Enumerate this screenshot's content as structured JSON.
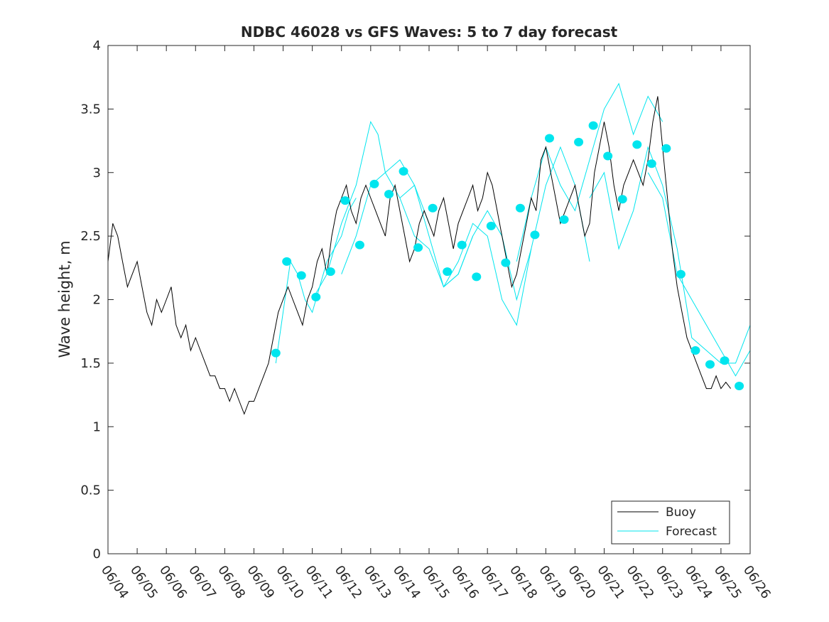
{
  "chart_data": {
    "type": "line",
    "title": "NDBC 46028 vs GFS Waves: 5 to 7 day forecast",
    "xlabel": "",
    "ylabel": "Wave height, m",
    "x_tick_labels": [
      "06/04",
      "06/05",
      "06/06",
      "06/07",
      "06/08",
      "06/09",
      "06/10",
      "06/11",
      "06/12",
      "06/13",
      "06/14",
      "06/15",
      "06/16",
      "06/17",
      "06/18",
      "06/19",
      "06/20",
      "06/21",
      "06/22",
      "06/23",
      "06/24",
      "06/25",
      "06/26"
    ],
    "xlim": [
      "06/04 00:00",
      "06/26 00:00"
    ],
    "ylim": [
      0,
      4
    ],
    "y_ticks": [
      "0",
      "0.5",
      "1",
      "1.5",
      "2",
      "2.5",
      "3",
      "3.5",
      "4"
    ],
    "grid": false,
    "legend_position": "bottom-right",
    "colors": {
      "buoy": "#000000",
      "forecast": "#00e5ee",
      "marker": "#00e5ee"
    },
    "series": [
      {
        "name": "Buoy",
        "kind": "line",
        "x": [
          "06/04 00:00",
          "06/04 04:00",
          "06/04 08:00",
          "06/04 12:00",
          "06/04 16:00",
          "06/04 20:00",
          "06/05 00:00",
          "06/05 04:00",
          "06/05 08:00",
          "06/05 12:00",
          "06/05 16:00",
          "06/05 20:00",
          "06/06 00:00",
          "06/06 04:00",
          "06/06 08:00",
          "06/06 12:00",
          "06/06 16:00",
          "06/06 20:00",
          "06/07 00:00",
          "06/07 04:00",
          "06/07 08:00",
          "06/07 12:00",
          "06/07 16:00",
          "06/07 20:00",
          "06/08 00:00",
          "06/08 04:00",
          "06/08 08:00",
          "06/08 12:00",
          "06/08 16:00",
          "06/08 20:00",
          "06/09 00:00",
          "06/09 04:00",
          "06/09 08:00",
          "06/09 12:00",
          "06/09 16:00",
          "06/09 20:00",
          "06/10 00:00",
          "06/10 04:00",
          "06/10 08:00",
          "06/10 12:00",
          "06/10 16:00",
          "06/10 20:00",
          "06/11 00:00",
          "06/11 04:00",
          "06/11 08:00",
          "06/11 12:00",
          "06/11 16:00",
          "06/11 20:00",
          "06/12 00:00",
          "06/12 04:00",
          "06/12 08:00",
          "06/12 12:00",
          "06/12 16:00",
          "06/12 20:00",
          "06/13 00:00",
          "06/13 04:00",
          "06/13 08:00",
          "06/13 12:00",
          "06/13 16:00",
          "06/13 20:00",
          "06/14 00:00",
          "06/14 04:00",
          "06/14 08:00",
          "06/14 12:00",
          "06/14 16:00",
          "06/14 20:00",
          "06/15 00:00",
          "06/15 04:00",
          "06/15 08:00",
          "06/15 12:00",
          "06/15 16:00",
          "06/15 20:00",
          "06/16 00:00",
          "06/16 04:00",
          "06/16 08:00",
          "06/16 12:00",
          "06/16 16:00",
          "06/16 20:00",
          "06/17 00:00",
          "06/17 04:00",
          "06/17 08:00",
          "06/17 12:00",
          "06/17 16:00",
          "06/17 20:00",
          "06/18 00:00",
          "06/18 04:00",
          "06/18 08:00",
          "06/18 12:00",
          "06/18 16:00",
          "06/18 20:00",
          "06/19 00:00",
          "06/19 04:00",
          "06/19 08:00",
          "06/19 12:00",
          "06/19 16:00",
          "06/19 20:00",
          "06/20 00:00",
          "06/20 04:00",
          "06/20 08:00",
          "06/20 12:00",
          "06/20 16:00",
          "06/20 20:00",
          "06/21 00:00",
          "06/21 04:00",
          "06/21 08:00",
          "06/21 12:00",
          "06/21 16:00",
          "06/21 20:00",
          "06/22 00:00",
          "06/22 04:00",
          "06/22 08:00",
          "06/22 12:00",
          "06/22 16:00",
          "06/22 20:00",
          "06/23 00:00",
          "06/23 04:00",
          "06/23 08:00",
          "06/23 12:00",
          "06/23 16:00",
          "06/23 20:00",
          "06/24 00:00",
          "06/24 04:00",
          "06/24 08:00",
          "06/24 12:00",
          "06/24 16:00",
          "06/24 20:00",
          "06/25 00:00",
          "06/25 04:00",
          "06/25 08:00"
        ],
        "y": [
          2.3,
          2.6,
          2.5,
          2.3,
          2.1,
          2.2,
          2.3,
          2.1,
          1.9,
          1.8,
          2.0,
          1.9,
          2.0,
          2.1,
          1.8,
          1.7,
          1.8,
          1.6,
          1.7,
          1.6,
          1.5,
          1.4,
          1.4,
          1.3,
          1.3,
          1.2,
          1.3,
          1.2,
          1.1,
          1.2,
          1.2,
          1.3,
          1.4,
          1.5,
          1.7,
          1.9,
          2.0,
          2.1,
          2.0,
          1.9,
          1.8,
          2.0,
          2.1,
          2.3,
          2.4,
          2.2,
          2.5,
          2.7,
          2.8,
          2.9,
          2.7,
          2.6,
          2.8,
          2.9,
          2.8,
          2.7,
          2.6,
          2.5,
          2.8,
          2.9,
          2.7,
          2.5,
          2.3,
          2.4,
          2.6,
          2.7,
          2.6,
          2.5,
          2.7,
          2.8,
          2.6,
          2.4,
          2.6,
          2.7,
          2.8,
          2.9,
          2.7,
          2.8,
          3.0,
          2.9,
          2.7,
          2.5,
          2.3,
          2.1,
          2.2,
          2.4,
          2.6,
          2.8,
          2.7,
          3.1,
          3.2,
          3.0,
          2.8,
          2.6,
          2.7,
          2.8,
          2.9,
          2.7,
          2.5,
          2.6,
          3.0,
          3.2,
          3.4,
          3.2,
          2.9,
          2.7,
          2.9,
          3.0,
          3.1,
          3.0,
          2.9,
          3.1,
          3.4,
          3.6,
          3.2,
          2.8,
          2.4,
          2.1,
          1.9,
          1.7,
          1.6,
          1.5,
          1.4,
          1.3,
          1.3,
          1.4,
          1.3,
          1.35,
          1.3
        ]
      },
      {
        "name": "Forecast",
        "kind": "line",
        "note_runs": "multiple forecast runs drawn as thin cyan lines",
        "runs": [
          {
            "x": [
              "06/09 18:00",
              "06/10 00:00",
              "06/10 06:00",
              "06/10 12:00",
              "06/10 18:00",
              "06/11 00:00",
              "06/11 06:00",
              "06/11 12:00",
              "06/11 18:00",
              "06/12 00:00",
              "06/12 06:00",
              "06/12 12:00"
            ],
            "y": [
              1.5,
              1.9,
              2.3,
              2.2,
              2.0,
              1.9,
              2.1,
              2.3,
              2.4,
              2.5,
              2.7,
              2.8
            ]
          },
          {
            "x": [
              "06/11 00:00",
              "06/11 12:00",
              "06/12 00:00",
              "06/12 12:00",
              "06/13 00:00",
              "06/13 06:00",
              "06/13 12:00",
              "06/14 00:00",
              "06/14 12:00",
              "06/15 00:00"
            ],
            "y": [
              2.0,
              2.2,
              2.6,
              2.9,
              3.4,
              3.3,
              3.0,
              2.8,
              2.9,
              2.6
            ]
          },
          {
            "x": [
              "06/12 00:00",
              "06/12 12:00",
              "06/13 00:00",
              "06/13 12:00",
              "06/14 00:00",
              "06/14 12:00",
              "06/15 00:00",
              "06/15 12:00",
              "06/16 00:00",
              "06/16 12:00"
            ],
            "y": [
              2.2,
              2.5,
              2.9,
              3.0,
              3.1,
              2.9,
              2.5,
              2.1,
              2.2,
              2.5
            ]
          },
          {
            "x": [
              "06/14 00:00",
              "06/14 12:00",
              "06/15 00:00",
              "06/15 12:00",
              "06/16 00:00",
              "06/16 12:00",
              "06/17 00:00",
              "06/17 12:00",
              "06/18 00:00",
              "06/18 12:00"
            ],
            "y": [
              2.8,
              2.5,
              2.4,
              2.1,
              2.2,
              2.5,
              2.7,
              2.5,
              2.0,
              2.4
            ]
          },
          {
            "x": [
              "06/15 12:00",
              "06/16 00:00",
              "06/16 12:00",
              "06/17 00:00",
              "06/17 12:00",
              "06/18 00:00",
              "06/18 12:00",
              "06/19 00:00",
              "06/19 12:00",
              "06/20 00:00",
              "06/20 12:00"
            ],
            "y": [
              2.1,
              2.3,
              2.6,
              2.5,
              2.0,
              1.8,
              2.4,
              2.9,
              3.2,
              2.9,
              2.3
            ]
          },
          {
            "x": [
              "06/18 00:00",
              "06/18 12:00",
              "06/19 00:00",
              "06/19 12:00",
              "06/20 00:00",
              "06/20 12:00",
              "06/21 00:00",
              "06/21 12:00",
              "06/22 00:00",
              "06/22 12:00",
              "06/23 00:00"
            ],
            "y": [
              2.3,
              2.8,
              3.2,
              2.9,
              2.7,
              3.1,
              3.5,
              3.7,
              3.3,
              3.6,
              3.4
            ]
          },
          {
            "x": [
              "06/20 12:00",
              "06/21 00:00",
              "06/21 12:00",
              "06/22 00:00",
              "06/22 12:00",
              "06/23 00:00",
              "06/23 12:00",
              "06/24 00:00",
              "06/24 12:00",
              "06/25 00:00",
              "06/25 12:00",
              "06/26 00:00"
            ],
            "y": [
              2.8,
              3.0,
              2.4,
              2.7,
              3.2,
              2.9,
              2.4,
              1.7,
              1.6,
              1.5,
              1.5,
              1.8
            ]
          },
          {
            "x": [
              "06/22 12:00",
              "06/23 00:00",
              "06/23 12:00",
              "06/24 00:00",
              "06/24 12:00",
              "06/25 00:00",
              "06/25 12:00",
              "06/26 00:00"
            ],
            "y": [
              3.0,
              2.8,
              2.2,
              2.0,
              1.8,
              1.6,
              1.4,
              1.6
            ]
          }
        ]
      },
      {
        "name": "",
        "kind": "markers",
        "x": [
          "06/09 18:00",
          "06/10 03:00",
          "06/10 15:00",
          "06/11 03:00",
          "06/11 15:00",
          "06/12 03:00",
          "06/12 15:00",
          "06/13 03:00",
          "06/13 15:00",
          "06/14 03:00",
          "06/14 15:00",
          "06/15 03:00",
          "06/15 15:00",
          "06/16 03:00",
          "06/16 15:00",
          "06/17 03:00",
          "06/17 15:00",
          "06/18 03:00",
          "06/18 15:00",
          "06/19 03:00",
          "06/19 15:00",
          "06/20 03:00",
          "06/20 15:00",
          "06/21 03:00",
          "06/21 15:00",
          "06/22 03:00",
          "06/22 15:00",
          "06/23 03:00",
          "06/23 15:00",
          "06/24 03:00",
          "06/24 15:00",
          "06/25 03:00",
          "06/25 15:00"
        ],
        "y": [
          1.58,
          2.3,
          2.19,
          2.02,
          2.22,
          2.78,
          2.43,
          2.91,
          2.83,
          3.01,
          2.41,
          2.72,
          2.22,
          2.43,
          2.18,
          2.58,
          2.29,
          2.72,
          2.51,
          3.27,
          2.63,
          3.24,
          3.37,
          3.13,
          2.79,
          3.22,
          3.07,
          3.19,
          2.2,
          1.6,
          1.49,
          1.52,
          1.32
        ]
      }
    ]
  }
}
